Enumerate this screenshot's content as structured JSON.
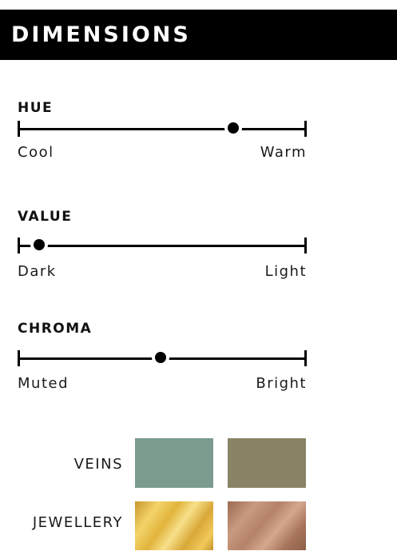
{
  "header": {
    "title": "DIMENSIONS"
  },
  "dimensions": [
    {
      "label": "HUE",
      "low": "Cool",
      "high": "Warm",
      "level": 0.75
    },
    {
      "label": "VALUE",
      "low": "Dark",
      "high": "Light",
      "level": 0.08
    },
    {
      "label": "CHROMA",
      "low": "Muted",
      "high": "Bright",
      "level": 0.5
    }
  ],
  "swatches": {
    "veins": {
      "label": "VEINS",
      "colors": [
        "#7a9b8e",
        "#8a8466"
      ]
    },
    "jewellery": {
      "label": "JEWELLERY",
      "colors": [
        "gold-foil",
        "rose-gold-foil"
      ]
    }
  }
}
